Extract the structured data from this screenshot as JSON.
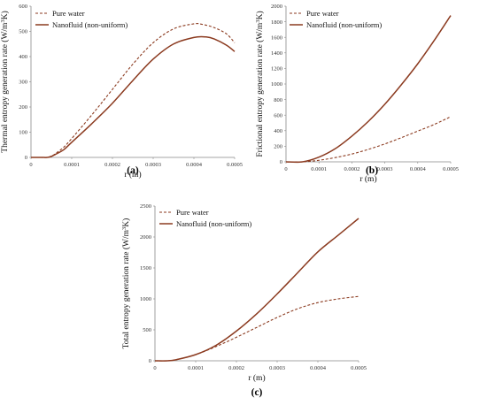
{
  "colors": {
    "series": "#8B3A1F",
    "axis": "#888888",
    "text": "#111111"
  },
  "chart_data": [
    {
      "id": "a",
      "type": "line",
      "panel_label": "(a)",
      "xlabel": "r (m)",
      "ylabel": "Thermal entropy generation rate (W/m",
      "ylabel_sup": "3",
      "ylabel_end": "K)",
      "xlim": [
        0,
        0.0005
      ],
      "ylim": [
        0,
        600
      ],
      "x_ticks": [
        "0",
        "0.0001",
        "0.0002",
        "0.0003",
        "0.0004",
        "0.0005"
      ],
      "y_ticks": [
        "0",
        "100",
        "200",
        "300",
        "400",
        "500",
        "600"
      ],
      "legend_position": "top-left",
      "series": [
        {
          "name": "Pure water",
          "style": "dashed",
          "x": [
            0,
            2.5e-05,
            4e-05,
            5e-05,
            6e-05,
            8e-05,
            0.0001,
            0.00015,
            0.0002,
            0.00025,
            0.0003,
            0.00035,
            0.0004,
            0.00042,
            0.00045,
            0.00048,
            0.0005
          ],
          "y": [
            0,
            0,
            0,
            5,
            15,
            40,
            75,
            170,
            270,
            370,
            455,
            510,
            530,
            528,
            515,
            490,
            455
          ]
        },
        {
          "name": "Nanofluid (non-uniform)",
          "style": "solid",
          "x": [
            0,
            2.5e-05,
            4e-05,
            5e-05,
            6e-05,
            8e-05,
            0.0001,
            0.00015,
            0.0002,
            0.00025,
            0.0003,
            0.00035,
            0.0004,
            0.00043,
            0.00045,
            0.00048,
            0.0005
          ],
          "y": [
            0,
            0,
            0,
            4,
            12,
            30,
            60,
            135,
            215,
            305,
            390,
            450,
            476,
            478,
            470,
            445,
            420
          ]
        }
      ]
    },
    {
      "id": "b",
      "type": "line",
      "panel_label": "(b)",
      "xlabel": "r (m)",
      "ylabel": "Frictional entropy generation rate (W/m",
      "ylabel_sup": "3",
      "ylabel_end": "K)",
      "xlim": [
        0,
        0.0005
      ],
      "ylim": [
        0,
        2000
      ],
      "x_ticks": [
        "0",
        "0.0001",
        "0.0002",
        "0.0003",
        "0.0004",
        "0.0005"
      ],
      "y_ticks": [
        "0",
        "200",
        "400",
        "600",
        "800",
        "1000",
        "1200",
        "1400",
        "1600",
        "1800",
        "2000"
      ],
      "legend_position": "top-left",
      "series": [
        {
          "name": "Pure water",
          "style": "dashed",
          "x": [
            0,
            5e-05,
            0.0001,
            0.00015,
            0.0002,
            0.00025,
            0.0003,
            0.00035,
            0.0004,
            0.00045,
            0.0005
          ],
          "y": [
            0,
            0,
            20,
            55,
            100,
            160,
            230,
            310,
            395,
            480,
            580
          ]
        },
        {
          "name": "Nanofluid (non-uniform)",
          "style": "solid",
          "x": [
            0,
            5e-05,
            0.0001,
            0.00015,
            0.0002,
            0.00025,
            0.0003,
            0.00035,
            0.0004,
            0.00045,
            0.0005
          ],
          "y": [
            0,
            0,
            60,
            170,
            330,
            520,
            740,
            990,
            1260,
            1560,
            1880
          ]
        }
      ]
    },
    {
      "id": "c",
      "type": "line",
      "panel_label": "(c)",
      "xlabel": "r (m)",
      "ylabel": "Total entropy generation rate (W/m",
      "ylabel_sup": "3",
      "ylabel_end": "K)",
      "xlim": [
        0,
        0.0005
      ],
      "ylim": [
        0,
        2500
      ],
      "x_ticks": [
        "0",
        "0.0001",
        "0.0002",
        "0.0003",
        "0.0004",
        "0.0005"
      ],
      "y_ticks": [
        "0",
        "500",
        "1000",
        "1500",
        "2000",
        "2500"
      ],
      "legend_position": "top-left",
      "series": [
        {
          "name": "Pure water",
          "style": "dashed",
          "x": [
            0,
            3e-05,
            5e-05,
            0.0001,
            0.00015,
            0.0002,
            0.00025,
            0.0003,
            0.00035,
            0.0004,
            0.00045,
            0.0005
          ],
          "y": [
            0,
            0,
            15,
            100,
            230,
            380,
            540,
            700,
            840,
            940,
            1000,
            1040
          ]
        },
        {
          "name": "Nanofluid (non-uniform)",
          "style": "solid",
          "x": [
            0,
            3e-05,
            5e-05,
            0.0001,
            0.00015,
            0.0002,
            0.00025,
            0.0003,
            0.00035,
            0.0004,
            0.00045,
            0.0005
          ],
          "y": [
            0,
            0,
            15,
            100,
            250,
            480,
            760,
            1080,
            1420,
            1760,
            2030,
            2300
          ]
        }
      ]
    }
  ]
}
